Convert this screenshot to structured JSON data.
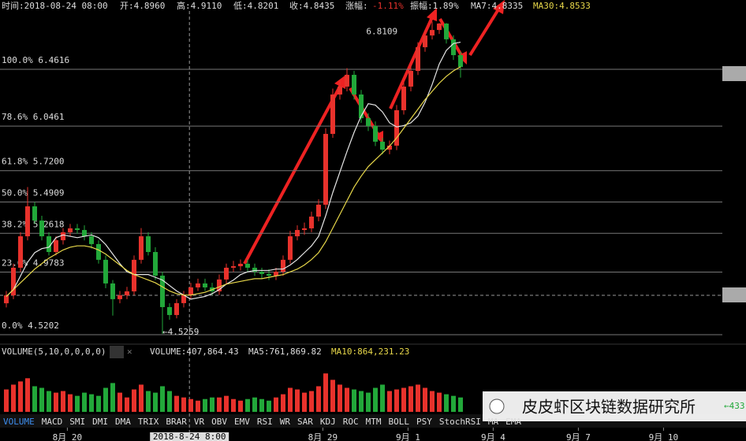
{
  "header": {
    "time": "时间:2018-08-24 08:00",
    "open": "开:4.8960",
    "high": "高:4.9110",
    "low": "低:4.8201",
    "close": "收:4.8435",
    "change_label": "涨幅:",
    "change": "-1.11%",
    "amplitude": "振幅:1.89%",
    "ma7": "MA7:4.8335",
    "ma30": "MA30:4.8533"
  },
  "chart_data": {
    "type": "candlestick",
    "categories": [
      null,
      null,
      null,
      null,
      null,
      null,
      null,
      null,
      null,
      null,
      null,
      null,
      null,
      null,
      null,
      null,
      null,
      null,
      null,
      null,
      null,
      null,
      null,
      null,
      null,
      null,
      null,
      null,
      null,
      null,
      null,
      null,
      null,
      null,
      null,
      null,
      null,
      null,
      null,
      null,
      null,
      null,
      null,
      null,
      null,
      null,
      null,
      null,
      null,
      null,
      null,
      null,
      null,
      null,
      null,
      null,
      null,
      null,
      null,
      null,
      null,
      null,
      null,
      null,
      null
    ],
    "open": [
      4.75,
      4.808,
      5.01,
      5.24,
      5.459,
      5.355,
      5.24,
      5.125,
      5.211,
      5.269,
      5.298,
      5.286,
      5.24,
      5.183,
      5.068,
      4.895,
      4.78,
      4.808,
      4.837,
      5.068,
      5.24,
      5.125,
      4.952,
      4.722,
      4.664,
      4.751,
      4.808,
      4.866,
      4.895,
      4.866,
      4.837,
      4.924,
      5.01,
      5.021,
      5.039,
      5.01,
      4.981,
      4.964,
      4.952,
      4.981,
      5.068,
      5.24,
      5.286,
      5.298,
      5.384,
      5.471,
      5.989,
      6.277,
      6.335,
      6.421,
      6.277,
      6.104,
      6.047,
      5.932,
      5.874,
      5.903,
      6.162,
      6.335,
      6.45,
      6.623,
      6.709,
      6.749,
      6.796,
      6.681,
      6.565
    ],
    "high": [
      4.84,
      5.04,
      5.27,
      5.6,
      5.49,
      5.39,
      5.27,
      5.24,
      5.3,
      5.33,
      5.33,
      5.32,
      5.27,
      5.21,
      5.1,
      4.92,
      4.84,
      4.87,
      5.1,
      5.3,
      5.27,
      5.16,
      4.98,
      4.75,
      4.78,
      4.84,
      4.9,
      4.93,
      4.93,
      4.9,
      4.96,
      5.04,
      5.06,
      5.07,
      5.07,
      5.04,
      5.01,
      5.0,
      5.01,
      5.1,
      5.28,
      5.32,
      5.34,
      5.42,
      5.51,
      6.03,
      6.32,
      6.38,
      6.47,
      6.45,
      6.31,
      6.14,
      6.08,
      5.96,
      5.94,
      6.2,
      6.37,
      6.49,
      6.66,
      6.75,
      6.8109,
      6.8,
      6.8,
      6.71,
      6.59
    ],
    "low": [
      4.72,
      4.78,
      4.98,
      5.21,
      5.33,
      5.21,
      5.1,
      5.1,
      5.18,
      5.24,
      5.26,
      5.21,
      5.15,
      5.04,
      4.86,
      4.66,
      4.75,
      4.78,
      4.81,
      5.04,
      5.1,
      4.92,
      4.5259,
      4.63,
      4.64,
      4.72,
      4.78,
      4.84,
      4.84,
      4.81,
      4.81,
      4.89,
      4.98,
      4.99,
      4.98,
      4.95,
      4.93,
      4.92,
      4.92,
      4.95,
      5.04,
      5.21,
      5.25,
      5.27,
      5.35,
      5.44,
      5.96,
      6.24,
      6.3,
      6.24,
      6.07,
      6.01,
      5.9,
      5.84,
      5.84,
      5.87,
      6.13,
      6.3,
      6.42,
      6.59,
      6.68,
      6.72,
      6.65,
      6.53,
      6.4
    ],
    "close": [
      4.808,
      5.01,
      5.24,
      5.459,
      5.355,
      5.24,
      5.125,
      5.211,
      5.269,
      5.298,
      5.286,
      5.24,
      5.183,
      5.068,
      4.895,
      4.78,
      4.808,
      4.837,
      5.068,
      5.24,
      5.125,
      4.952,
      4.722,
      4.664,
      4.751,
      4.808,
      4.866,
      4.895,
      4.866,
      4.837,
      4.924,
      5.01,
      5.021,
      5.039,
      5.01,
      4.981,
      4.964,
      4.952,
      4.981,
      5.068,
      5.24,
      5.286,
      5.298,
      5.384,
      5.471,
      5.989,
      6.277,
      6.335,
      6.421,
      6.277,
      6.104,
      6.047,
      5.932,
      5.874,
      5.903,
      6.162,
      6.335,
      6.45,
      6.623,
      6.709,
      6.749,
      6.796,
      6.681,
      6.565,
      6.479
    ],
    "up_color": "#e8322c",
    "down_color": "#22a83a",
    "lines": [
      {
        "color": "#e6e6e6",
        "values": [
          4.8,
          4.85,
          4.95,
          5.05,
          5.12,
          5.15,
          5.16,
          5.23,
          5.25,
          5.24,
          5.23,
          5.24,
          5.25,
          5.23,
          5.18,
          5.11,
          5.04,
          4.98,
          4.96,
          4.96,
          4.96,
          4.94,
          4.92,
          4.88,
          4.84,
          4.81,
          4.78,
          4.79,
          4.8,
          4.82,
          4.85,
          4.89,
          4.92,
          4.96,
          4.98,
          4.99,
          4.99,
          4.99,
          5.0,
          5.0,
          5.03,
          5.07,
          5.12,
          5.17,
          5.24,
          5.39,
          5.56,
          5.71,
          5.86,
          6.0,
          6.12,
          6.21,
          6.2,
          6.15,
          6.07,
          6.04,
          6.05,
          6.07,
          6.12,
          6.22,
          6.35,
          6.5,
          6.6,
          6.65,
          6.66
        ]
      },
      {
        "color": "#e8d84a",
        "values": [
          4.8,
          4.85,
          4.9,
          4.95,
          5.0,
          5.04,
          5.08,
          5.11,
          5.14,
          5.16,
          5.17,
          5.17,
          5.16,
          5.14,
          5.11,
          5.07,
          5.03,
          4.99,
          4.96,
          4.94,
          4.92,
          4.9,
          4.87,
          4.84,
          4.82,
          4.81,
          4.81,
          4.82,
          4.83,
          4.85,
          4.87,
          4.89,
          4.9,
          4.91,
          4.92,
          4.93,
          4.93,
          4.94,
          4.95,
          4.96,
          4.98,
          5.0,
          5.03,
          5.07,
          5.12,
          5.2,
          5.3,
          5.4,
          5.5,
          5.6,
          5.68,
          5.75,
          5.8,
          5.85,
          5.9,
          5.96,
          6.03,
          6.1,
          6.17,
          6.24,
          6.3,
          6.36,
          6.41,
          6.45,
          6.48
        ]
      }
    ],
    "ylim": [
      4.4626,
      6.9684
    ],
    "fib_levels": [
      {
        "value": 6.4616,
        "label": "100.0% 6.4616"
      },
      {
        "value": 6.0461,
        "label": "78.6% 6.0461"
      },
      {
        "value": 5.72,
        "label": "61.8% 5.7200"
      },
      {
        "value": 5.4909,
        "label": "50.0% 5.4909"
      },
      {
        "value": 5.2618,
        "label": "38.2% 5.2618"
      },
      {
        "value": 4.9783,
        "label": "23.6% 4.9783"
      },
      {
        "value": 4.5202,
        "label": "0.0% 4.5202"
      }
    ],
    "annotations": [
      {
        "index": 57.6,
        "value": 6.8109,
        "label": "6.8109"
      },
      {
        "index": 22,
        "value": 4.5259,
        "label": "←4.5259"
      }
    ],
    "crosshair": {
      "index": 25.8,
      "value": 4.808,
      "label": "2018-8-24 8:00"
    },
    "xticks": [
      {
        "value": 8.6,
        "label": "8月 20"
      },
      {
        "value": 44.6,
        "label": "8月 29"
      },
      {
        "value": 56.6,
        "label": "9月 1"
      },
      {
        "value": 68.6,
        "label": "9月 4"
      },
      {
        "value": 80.6,
        "label": "9月 7"
      },
      {
        "value": 92.6,
        "label": "9月 10"
      }
    ],
    "volume": {
      "title": "VOLUME(5,10,0,0,0,0)",
      "current": "VOLUME:407,864.43",
      "ma5": "MA5:761,869.82",
      "ma10": "MA10:864,231.23",
      "ylim": [
        0,
        3000000
      ],
      "values": [
        1400000,
        1700000,
        1900000,
        2100000,
        1600000,
        1500000,
        1300000,
        1200000,
        1300000,
        1100000,
        1000000,
        1200000,
        1100000,
        1000000,
        1500000,
        1800000,
        1200000,
        900000,
        1400000,
        1700000,
        1300000,
        1200000,
        1600000,
        1300000,
        1000000,
        900000,
        800000,
        700000,
        800000,
        900000,
        900000,
        1000000,
        800000,
        700000,
        800000,
        900000,
        800000,
        700000,
        900000,
        1100000,
        1500000,
        1400000,
        1200000,
        1300000,
        1600000,
        2400000,
        2000000,
        1700000,
        1500000,
        1400000,
        1300000,
        1200000,
        1500000,
        1700000,
        1300000,
        1400000,
        1500000,
        1600000,
        1700000,
        1500000,
        1300000,
        1200000,
        1100000,
        1000000,
        900000
      ]
    }
  },
  "toolbar": [
    "VOLUME",
    "MACD",
    "SMI",
    "DMI",
    "DMA",
    "TRIX",
    "BRAR",
    "VR",
    "OBV",
    "EMV",
    "RSI",
    "WR",
    "SAR",
    "KDJ",
    "ROC",
    "MTM",
    "BOLL",
    "PSY",
    "StochRSI",
    "MA",
    "EMA"
  ],
  "watermark": {
    "text": "皮皮虾区块链数据研究所",
    "side": "←433"
  }
}
